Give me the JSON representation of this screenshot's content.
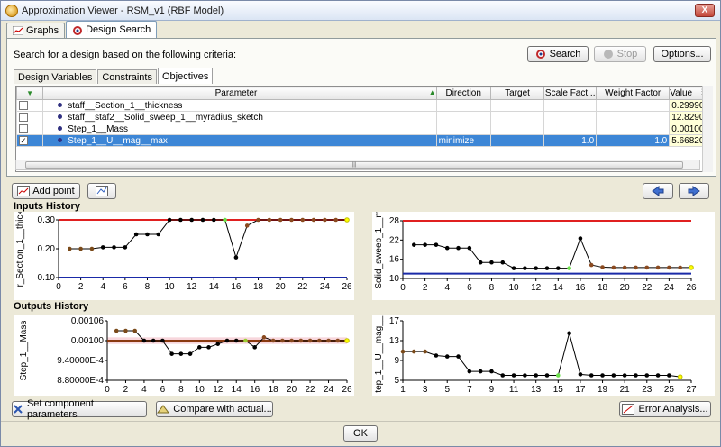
{
  "window": {
    "title": "Approximation Viewer - RSM_v1 (RBF Model)",
    "close": "X"
  },
  "tabs": [
    {
      "label": "Graphs"
    },
    {
      "label": "Design Search"
    }
  ],
  "search": {
    "criteria_label": "Search for a design based on the following criteria:",
    "search_label": "Search",
    "stop_label": "Stop",
    "options_label": "Options..."
  },
  "subtabs": [
    {
      "label": "Design Variables"
    },
    {
      "label": "Constraints"
    },
    {
      "label": "Objectives"
    }
  ],
  "table": {
    "headers": [
      "Parameter",
      "Direction",
      "Target",
      "Scale Fact...",
      "Weight Factor",
      "Value"
    ],
    "rows": [
      {
        "param": "staff__Section_1__thickness",
        "direction": "",
        "target": "",
        "scale": "",
        "weight": "",
        "value": "0.29990",
        "checked": false
      },
      {
        "param": "staff__staf2__Solid_sweep_1__myradius_sketch",
        "direction": "",
        "target": "",
        "scale": "",
        "weight": "",
        "value": "12.8290",
        "checked": false
      },
      {
        "param": "Step_1__Mass",
        "direction": "",
        "target": "",
        "scale": "",
        "weight": "",
        "value": "0.001001",
        "checked": false
      },
      {
        "param": "Step_1__U__mag__max",
        "direction": "minimize",
        "target": "",
        "scale": "1.0",
        "weight": "1.0",
        "value": "5.66820",
        "checked": true
      }
    ]
  },
  "toolbar": {
    "add_point": "Add point"
  },
  "inputs_history": {
    "heading": "Inputs History"
  },
  "outputs_history": {
    "heading": "Outputs History"
  },
  "chart_data": [
    {
      "type": "line",
      "ylabel": "r_Section_1__thick",
      "x": [
        1,
        2,
        3,
        4,
        5,
        6,
        7,
        8,
        9,
        10,
        11,
        12,
        13,
        14,
        15,
        16,
        17,
        18,
        19,
        20,
        21,
        22,
        23,
        24,
        25,
        26
      ],
      "values": [
        0.2,
        0.2,
        0.2,
        0.205,
        0.205,
        0.205,
        0.25,
        0.25,
        0.25,
        0.3,
        0.3,
        0.3,
        0.3,
        0.3,
        0.3,
        0.17,
        0.28,
        0.3,
        0.3,
        0.3,
        0.3,
        0.3,
        0.3,
        0.3,
        0.3,
        0.3
      ],
      "upper_bound": 0.3,
      "lower_bound": 0.1,
      "xlim": [
        0,
        26
      ],
      "ylim": [
        0.1,
        0.3
      ],
      "xticks": [
        0,
        2,
        4,
        6,
        8,
        10,
        12,
        14,
        16,
        18,
        20,
        22,
        24,
        26
      ],
      "yticks": [
        "0.10",
        "0.20",
        "0.30"
      ],
      "highlight": {
        "x": 15,
        "color": "#6be04a"
      },
      "last_color": "#ffff00"
    },
    {
      "type": "line",
      "ylabel": "Solid_sweep_1__m",
      "x": [
        1,
        2,
        3,
        4,
        5,
        6,
        7,
        8,
        9,
        10,
        11,
        12,
        13,
        14,
        15,
        16,
        17,
        18,
        19,
        20,
        21,
        22,
        23,
        24,
        25,
        26
      ],
      "values": [
        20.5,
        20.5,
        20.5,
        19.5,
        19.5,
        19.5,
        15,
        15,
        15,
        13.2,
        13.2,
        13.2,
        13.2,
        13.2,
        13.2,
        22.5,
        14.2,
        13.5,
        13.4,
        13.4,
        13.4,
        13.4,
        13.4,
        13.4,
        13.4,
        13.4
      ],
      "upper_bound": 28,
      "lower_bound": 11.5,
      "xlim": [
        0,
        26
      ],
      "ylim": [
        10,
        28
      ],
      "xticks": [
        0,
        2,
        4,
        6,
        8,
        10,
        12,
        14,
        16,
        18,
        20,
        22,
        24,
        26
      ],
      "yticks": [
        "10",
        "16",
        "22",
        "28"
      ],
      "highlight": {
        "x": 15,
        "color": "#6be04a"
      },
      "last_color": "#ffff00"
    },
    {
      "type": "line",
      "ylabel": "Step_1__Mass",
      "x": [
        1,
        2,
        3,
        4,
        5,
        6,
        7,
        8,
        9,
        10,
        11,
        12,
        13,
        14,
        15,
        16,
        17,
        18,
        19,
        20,
        21,
        22,
        23,
        24,
        25,
        26
      ],
      "values": [
        0.00103,
        0.00103,
        0.00103,
        0.001,
        0.001,
        0.001,
        0.00096,
        0.00096,
        0.00096,
        0.00098,
        0.00098,
        0.00099,
        0.001,
        0.001,
        0.001,
        0.00098,
        0.00101,
        0.001,
        0.001,
        0.001,
        0.001,
        0.001,
        0.001,
        0.001,
        0.001,
        0.001
      ],
      "target": 0.001,
      "xlim": [
        0,
        26
      ],
      "xticks": [
        0,
        2,
        4,
        6,
        8,
        10,
        12,
        14,
        16,
        18,
        20,
        22,
        24,
        26
      ],
      "yticks": [
        "8.80000E-4",
        "9.40000E-4",
        "0.00100",
        "0.00106"
      ],
      "highlight": {
        "x": 15,
        "color": "#9acd32"
      },
      "last_color": "#ffff00"
    },
    {
      "type": "line",
      "ylabel": "tep_1__U__mag__m",
      "x": [
        1,
        2,
        3,
        4,
        5,
        6,
        7,
        8,
        9,
        10,
        11,
        12,
        13,
        14,
        15,
        16,
        17,
        18,
        19,
        20,
        21,
        22,
        23,
        24,
        25,
        26
      ],
      "values": [
        10.8,
        10.8,
        10.8,
        10,
        9.8,
        9.8,
        6.8,
        6.8,
        6.8,
        6,
        6,
        6,
        6,
        6,
        6,
        14.5,
        6.2,
        6,
        6,
        6,
        6,
        6,
        6,
        6,
        6,
        5.7
      ],
      "xlim": [
        1,
        27
      ],
      "ylim": [
        5,
        17
      ],
      "xticks": [
        1,
        3,
        5,
        7,
        9,
        11,
        13,
        15,
        17,
        19,
        21,
        23,
        25,
        27
      ],
      "yticks": [
        "5",
        "9",
        "13",
        "17"
      ],
      "highlight": {
        "x": 15,
        "color": "#6be04a"
      },
      "last_color": "#ffff00"
    }
  ],
  "bottom": {
    "set_params": "Set component parameters",
    "compare": "Compare with actual...",
    "error": "Error Analysis...",
    "ok": "OK"
  }
}
